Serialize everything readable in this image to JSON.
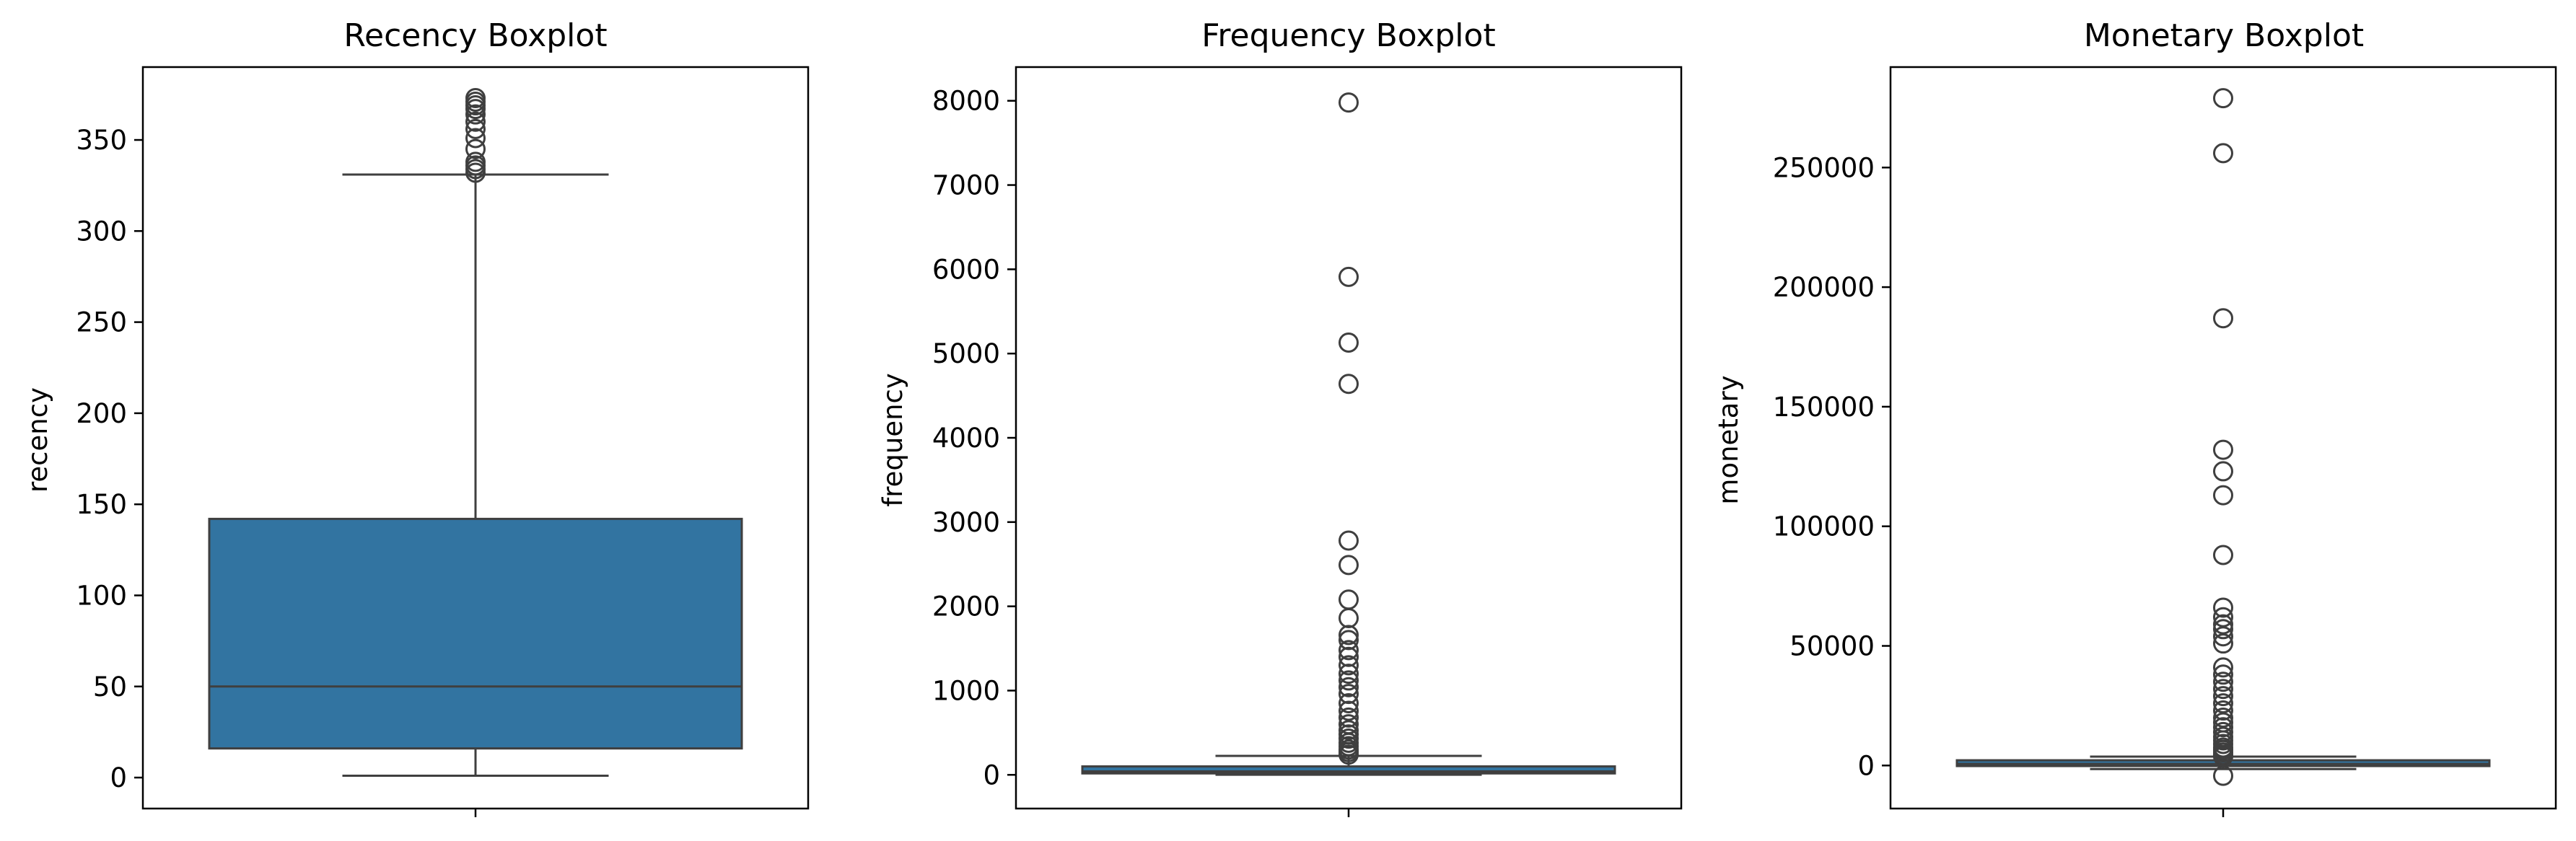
{
  "chart_data": [
    {
      "type": "boxplot",
      "title": "Recency Boxplot",
      "ylabel": "recency",
      "xlabel": "",
      "ylim": [
        -17,
        390
      ],
      "yticks": [
        0,
        50,
        100,
        150,
        200,
        250,
        300,
        350
      ],
      "ytick_labels": [
        "0",
        "50",
        "100",
        "150",
        "200",
        "250",
        "300",
        "350"
      ],
      "color": "#3274a1",
      "stats": {
        "whislo": 1,
        "q1": 16,
        "med": 50,
        "q3": 142,
        "whishi": 331
      },
      "fliers": [
        332,
        334,
        336,
        338,
        345,
        351,
        356,
        360,
        364,
        367,
        369,
        371,
        373
      ]
    },
    {
      "type": "boxplot",
      "title": "Frequency Boxplot",
      "ylabel": "frequency",
      "xlabel": "",
      "ylim": [
        -400,
        8400
      ],
      "yticks": [
        0,
        1000,
        2000,
        3000,
        4000,
        5000,
        6000,
        7000,
        8000
      ],
      "ytick_labels": [
        "0",
        "1000",
        "2000",
        "3000",
        "4000",
        "5000",
        "6000",
        "7000",
        "8000"
      ],
      "color": "#3274a1",
      "stats": {
        "whislo": 1,
        "q1": 17,
        "med": 41,
        "q3": 100,
        "whishi": 225
      },
      "fliers": [
        240,
        270,
        300,
        340,
        380,
        430,
        480,
        530,
        600,
        680,
        760,
        850,
        960,
        1040,
        1120,
        1200,
        1300,
        1400,
        1480,
        1600,
        1660,
        1860,
        2080,
        2490,
        2780,
        4640,
        5130,
        5910,
        7980
      ]
    },
    {
      "type": "boxplot",
      "title": "Monetary Boxplot",
      "ylabel": "monetary",
      "xlabel": "",
      "ylim": [
        -18000,
        292000
      ],
      "yticks": [
        0,
        50000,
        100000,
        150000,
        200000,
        250000
      ],
      "ytick_labels": [
        "0",
        "50000",
        "100000",
        "150000",
        "200000",
        "250000"
      ],
      "color": "#3274a1",
      "stats": {
        "whislo": -1500,
        "q1": 300,
        "med": 650,
        "q3": 1650,
        "whishi": 3700
      },
      "fliers": [
        -4300,
        3800,
        4500,
        5500,
        6500,
        7500,
        9000,
        10500,
        12000,
        14000,
        16000,
        18000,
        20000,
        23000,
        26000,
        29000,
        32000,
        35000,
        38000,
        41000,
        51000,
        54000,
        57000,
        59000,
        62000,
        66000,
        88000,
        113000,
        123000,
        132000,
        187000,
        256000,
        279000
      ]
    }
  ]
}
